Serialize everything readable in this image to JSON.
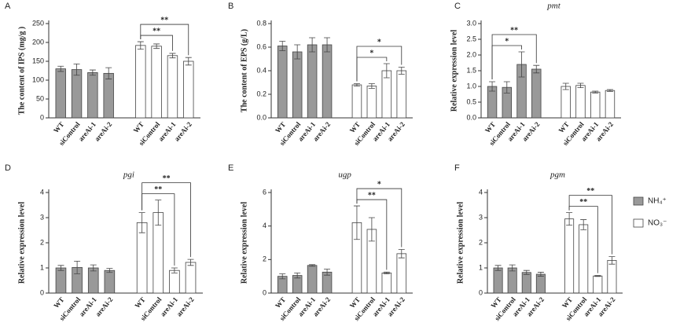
{
  "chart_data": [
    {
      "type": "bar",
      "panel": "A",
      "ylabel": "The content of IPS (mg/g )",
      "categories": [
        "WT",
        "siControl",
        "areAi-1",
        "areAi-2"
      ],
      "series": [
        {
          "name": "NH₄⁺",
          "color": "#999999",
          "values": [
            130,
            128,
            120,
            118
          ],
          "errors": [
            7,
            15,
            7,
            15
          ]
        },
        {
          "name": "NO₃⁻",
          "color": "#ffffff",
          "values": [
            192,
            190,
            165,
            150
          ],
          "errors": [
            10,
            6,
            6,
            10
          ]
        }
      ],
      "ylim": [
        0,
        250
      ],
      "yticks": [
        0,
        50,
        100,
        150,
        200,
        250
      ],
      "annotations": [
        {
          "label": "**",
          "series": "NO₃⁻",
          "from": "WT",
          "to": "areAi-1"
        },
        {
          "label": "**",
          "series": "NO₃⁻",
          "from": "WT",
          "to": "areAi-2"
        }
      ]
    },
    {
      "type": "bar",
      "panel": "B",
      "ylabel": "The content of EPS (g/L)",
      "categories": [
        "WT",
        "siControl",
        "areAi-1",
        "areAi-2"
      ],
      "series": [
        {
          "name": "NH₄⁺",
          "color": "#999999",
          "values": [
            0.61,
            0.56,
            0.62,
            0.62
          ],
          "errors": [
            0.04,
            0.06,
            0.06,
            0.06
          ]
        },
        {
          "name": "NO₃⁻",
          "color": "#ffffff",
          "values": [
            0.28,
            0.27,
            0.4,
            0.4
          ],
          "errors": [
            0.01,
            0.02,
            0.06,
            0.03
          ]
        }
      ],
      "ylim": [
        0,
        0.8
      ],
      "yticks": [
        {
          "value": 0,
          "label": "0.0"
        },
        0.2,
        0.4,
        0.6,
        0.8
      ],
      "annotations": [
        {
          "label": "*",
          "series": "NO₃⁻",
          "from": "WT",
          "to": "areAi-1"
        },
        {
          "label": "*",
          "series": "NO₃⁻",
          "from": "WT",
          "to": "areAi-2"
        }
      ]
    },
    {
      "type": "bar",
      "panel": "C",
      "title": "pmt",
      "ylabel": "Relative expression level",
      "categories": [
        "WT",
        "siControl",
        "areAi-1",
        "areAi-2"
      ],
      "series": [
        {
          "name": "NH₄⁺",
          "color": "#999999",
          "values": [
            1.0,
            0.97,
            1.7,
            1.55
          ],
          "errors": [
            0.15,
            0.18,
            0.4,
            0.12
          ]
        },
        {
          "name": "NO₃⁻",
          "color": "#ffffff",
          "values": [
            1.0,
            1.03,
            0.82,
            0.87
          ],
          "errors": [
            0.1,
            0.07,
            0.03,
            0.03
          ]
        }
      ],
      "ylim": [
        0,
        3
      ],
      "yticks": [
        {
          "value": 0,
          "label": "0.0"
        },
        0.5,
        {
          "value": 1,
          "label": "1.0"
        },
        1.5,
        {
          "value": 2,
          "label": "2.0"
        },
        2.5,
        {
          "value": 3,
          "label": "3.0"
        }
      ],
      "annotations": [
        {
          "label": "*",
          "series": "NH₄⁺",
          "from": "WT",
          "to": "areAi-1"
        },
        {
          "label": "**",
          "series": "NH₄⁺",
          "from": "WT",
          "to": "areAi-2"
        }
      ]
    },
    {
      "type": "bar",
      "panel": "D",
      "title": "pgi",
      "ylabel": "Relative expression level",
      "categories": [
        "WT",
        "siControl",
        "areAi-1",
        "areAi-2"
      ],
      "series": [
        {
          "name": "NH₄⁺",
          "color": "#999999",
          "values": [
            1.0,
            1.02,
            1.0,
            0.9
          ],
          "errors": [
            0.1,
            0.25,
            0.12,
            0.08
          ]
        },
        {
          "name": "NO₃⁻",
          "color": "#ffffff",
          "values": [
            2.8,
            3.2,
            0.9,
            1.22
          ],
          "errors": [
            0.4,
            0.5,
            0.1,
            0.12
          ]
        }
      ],
      "ylim": [
        0,
        4
      ],
      "yticks": [
        0,
        1,
        2,
        3,
        4
      ],
      "annotations": [
        {
          "label": "**",
          "series": "NO₃⁻",
          "from": "WT",
          "to": "areAi-1"
        },
        {
          "label": "**",
          "series": "NO₃⁻",
          "from": "WT",
          "to": "areAi-2"
        }
      ]
    },
    {
      "type": "bar",
      "panel": "E",
      "title": "ugp",
      "ylabel": "Relative expression level",
      "categories": [
        "WT",
        "siControl",
        "areAi-1",
        "areAi-2"
      ],
      "series": [
        {
          "name": "NH₄⁺",
          "color": "#999999",
          "values": [
            1.0,
            1.05,
            1.65,
            1.25
          ],
          "errors": [
            0.15,
            0.15,
            0.05,
            0.18
          ]
        },
        {
          "name": "NO₃⁻",
          "color": "#ffffff",
          "values": [
            4.2,
            3.8,
            1.2,
            2.35
          ],
          "errors": [
            1.0,
            0.7,
            0.05,
            0.25
          ]
        }
      ],
      "ylim": [
        0,
        6
      ],
      "yticks": [
        0,
        2,
        4,
        6
      ],
      "annotations": [
        {
          "label": "**",
          "series": "NO₃⁻",
          "from": "WT",
          "to": "areAi-1"
        },
        {
          "label": "*",
          "series": "NO₃⁻",
          "from": "WT",
          "to": "areAi-2"
        }
      ]
    },
    {
      "type": "bar",
      "panel": "F",
      "title": "pgm",
      "ylabel": "Relative expression level",
      "categories": [
        "WT",
        "siControl",
        "areAi-1",
        "areAi-2"
      ],
      "series": [
        {
          "name": "NH₄⁺",
          "color": "#999999",
          "values": [
            1.0,
            1.0,
            0.82,
            0.75
          ],
          "errors": [
            0.1,
            0.12,
            0.08,
            0.08
          ]
        },
        {
          "name": "NO₃⁻",
          "color": "#ffffff",
          "values": [
            2.95,
            2.72,
            0.68,
            1.3
          ],
          "errors": [
            0.25,
            0.2,
            0.02,
            0.15
          ]
        }
      ],
      "ylim": [
        0,
        4
      ],
      "yticks": [
        0,
        1,
        2,
        3,
        4
      ],
      "annotations": [
        {
          "label": "**",
          "series": "NO₃⁻",
          "from": "WT",
          "to": "areAi-1"
        },
        {
          "label": "**",
          "series": "NO₃⁻",
          "from": "WT",
          "to": "areAi-2"
        }
      ],
      "legend": true
    }
  ]
}
